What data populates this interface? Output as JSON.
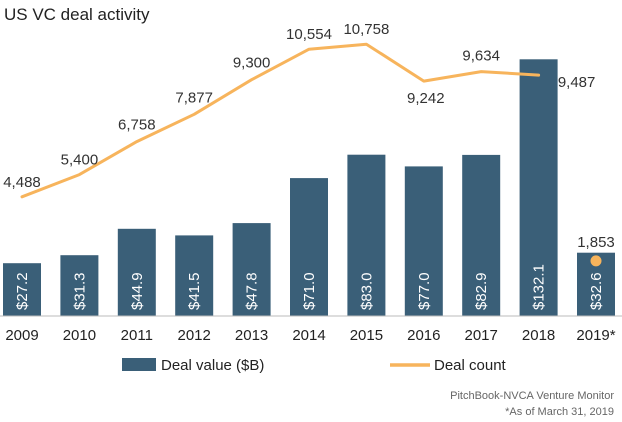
{
  "chart_data": {
    "type": "bar",
    "title": "US VC deal activity",
    "categories": [
      "2009",
      "2010",
      "2011",
      "2012",
      "2013",
      "2014",
      "2015",
      "2016",
      "2017",
      "2018",
      "2019*"
    ],
    "series": [
      {
        "name": "Deal value ($B)",
        "type": "bar",
        "values": [
          27.2,
          31.3,
          44.9,
          41.5,
          47.8,
          71.0,
          83.0,
          77.0,
          82.9,
          132.1,
          32.6
        ],
        "labels": [
          "$27.2",
          "$31.3",
          "$44.9",
          "$41.5",
          "$47.8",
          "$71.0",
          "$83.0",
          "$77.0",
          "$82.9",
          "$132.1",
          "$32.6"
        ],
        "color": "#3a5f78"
      },
      {
        "name": "Deal count",
        "type": "line",
        "values": [
          4488,
          5400,
          6758,
          7877,
          9300,
          10554,
          10758,
          9242,
          9634,
          9487,
          1853
        ],
        "labels": [
          "4,488",
          "5,400",
          "6,758",
          "7,877",
          "9,300",
          "10,554",
          "10,758",
          "9,242",
          "9,634",
          "9,487",
          "1,853"
        ],
        "color": "#f7b45c",
        "line_break_before_last": true
      }
    ],
    "legend": {
      "position": "bottom",
      "items": [
        {
          "label": "Deal value ($B)",
          "swatch": "bar"
        },
        {
          "label": "Deal count",
          "swatch": "line"
        }
      ]
    },
    "ylim_value": [
      0,
      140
    ],
    "ylim_count": [
      0,
      12000
    ],
    "grid": false
  },
  "footer": {
    "source": "PitchBook-NVCA Venture Monitor",
    "note": "*As of March 31, 2019"
  }
}
